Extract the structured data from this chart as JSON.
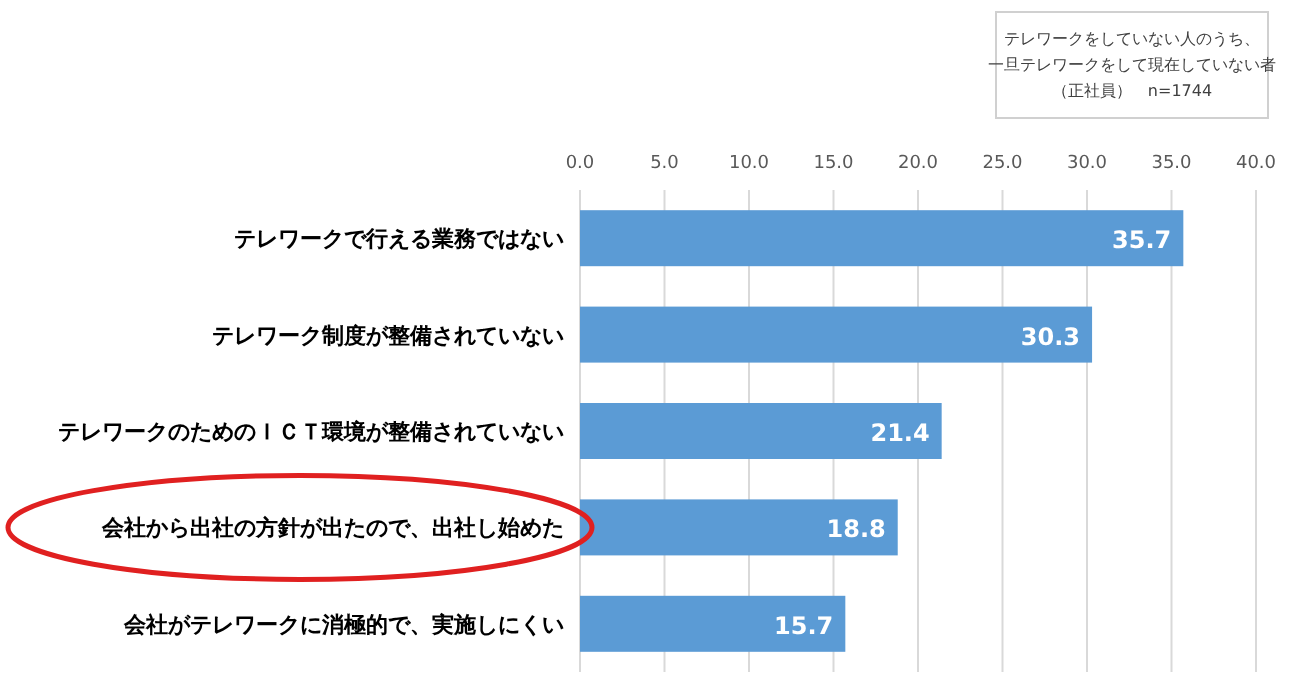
{
  "chart_data": {
    "type": "bar",
    "orientation": "horizontal",
    "categories": [
      "テレワークで行える業務ではない",
      "テレワーク制度が整備されていない",
      "テレワークのためのＩＣＴ環境が整備されていない",
      "会社から出社の方針が出たので、出社し始めた",
      "会社がテレワークに消極的で、実施しにくい"
    ],
    "values": [
      35.7,
      30.3,
      21.4,
      18.8,
      15.7
    ],
    "color": "#5b9bd5",
    "xlim": [
      0,
      40
    ],
    "xticks": [
      {
        "value": 0,
        "label": "0.0"
      },
      {
        "value": 5,
        "label": "5.0"
      },
      {
        "value": 10,
        "label": "10.0"
      },
      {
        "value": 15,
        "label": "15.0"
      },
      {
        "value": 20,
        "label": "20.0"
      },
      {
        "value": 25,
        "label": "25.0"
      },
      {
        "value": 30,
        "label": "30.0"
      },
      {
        "value": 35,
        "label": "35.0"
      },
      {
        "value": 40,
        "label": "40.0"
      }
    ],
    "grid": "x",
    "data_labels": true,
    "annotations": [
      "テレワークをしていない人のうち、",
      "一旦テレワークをして現在していない者",
      "（正社員）　n=1744"
    ]
  }
}
